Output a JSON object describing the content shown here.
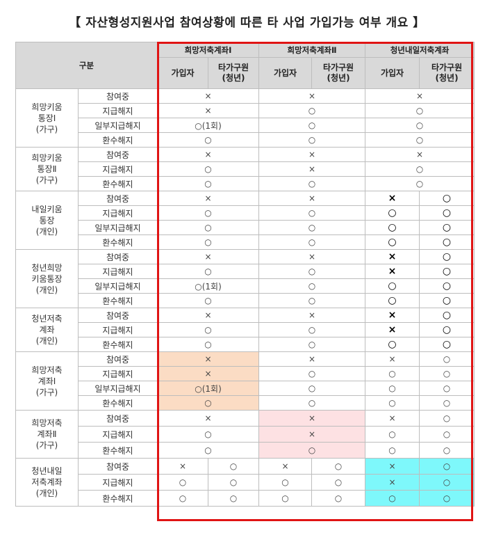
{
  "title": "【 자산형성지원사업 참여상황에 따른 타 사업 가입가능 여부 개요 】",
  "header": {
    "gubun": "구분",
    "columns": [
      {
        "label": "희망저축계좌Ⅰ",
        "sub": [
          "가입자",
          "타가구원\n(청년)"
        ]
      },
      {
        "label": "희망저축계좌Ⅱ",
        "sub": [
          "가입자",
          "타가구원\n(청년)"
        ]
      },
      {
        "label": "청년내일저축계좌",
        "sub": [
          "가입자",
          "타가구원\n(청년)"
        ]
      }
    ]
  },
  "groups": [
    {
      "name": "희망키움\n통장Ⅰ\n(가구)",
      "rows": [
        {
          "label": "참여중",
          "cells": [
            {
              "v": "×",
              "span": 2
            },
            {
              "v": "×",
              "span": 2
            },
            {
              "v": "×",
              "span": 2
            }
          ]
        },
        {
          "label": "지급해지",
          "cells": [
            {
              "v": "×",
              "span": 2
            },
            {
              "v": "○",
              "span": 2
            },
            {
              "v": "○",
              "span": 2
            }
          ]
        },
        {
          "label": "일부지급해지",
          "cells": [
            {
              "v": "○(1회)",
              "span": 2
            },
            {
              "v": "○",
              "span": 2
            },
            {
              "v": "○",
              "span": 2
            }
          ]
        },
        {
          "label": "환수해지",
          "cells": [
            {
              "v": "○",
              "span": 2
            },
            {
              "v": "○",
              "span": 2
            },
            {
              "v": "○",
              "span": 2
            }
          ]
        }
      ]
    },
    {
      "name": "희망키움\n통장Ⅱ\n(가구)",
      "rows": [
        {
          "label": "참여중",
          "cells": [
            {
              "v": "×",
              "span": 2
            },
            {
              "v": "×",
              "span": 2
            },
            {
              "v": "×",
              "span": 2
            }
          ]
        },
        {
          "label": "지급해지",
          "cells": [
            {
              "v": "○",
              "span": 2
            },
            {
              "v": "×",
              "span": 2
            },
            {
              "v": "○",
              "span": 2
            }
          ]
        },
        {
          "label": "환수해지",
          "cells": [
            {
              "v": "○",
              "span": 2
            },
            {
              "v": "○",
              "span": 2
            },
            {
              "v": "○",
              "span": 2
            }
          ]
        }
      ]
    },
    {
      "name": "내일키움\n통장\n(개인)",
      "rows": [
        {
          "label": "참여중",
          "cells": [
            {
              "v": "×",
              "span": 2
            },
            {
              "v": "×",
              "span": 2
            },
            {
              "v": "×",
              "bold": true
            },
            {
              "v": "○",
              "bold": true
            }
          ]
        },
        {
          "label": "지급해지",
          "cells": [
            {
              "v": "○",
              "span": 2
            },
            {
              "v": "○",
              "span": 2
            },
            {
              "v": "○",
              "bold": true
            },
            {
              "v": "○",
              "bold": true
            }
          ]
        },
        {
          "label": "일부지급해지",
          "cells": [
            {
              "v": "○",
              "span": 2
            },
            {
              "v": "○",
              "span": 2
            },
            {
              "v": "○",
              "bold": true
            },
            {
              "v": "○",
              "bold": true
            }
          ]
        },
        {
          "label": "환수해지",
          "cells": [
            {
              "v": "○",
              "span": 2
            },
            {
              "v": "○",
              "span": 2
            },
            {
              "v": "○",
              "bold": true
            },
            {
              "v": "○",
              "bold": true
            }
          ]
        }
      ]
    },
    {
      "name": "청년희망\n키움통장\n(개인)",
      "rows": [
        {
          "label": "참여중",
          "cells": [
            {
              "v": "×",
              "span": 2
            },
            {
              "v": "×",
              "span": 2
            },
            {
              "v": "×",
              "bold": true
            },
            {
              "v": "○",
              "bold": true
            }
          ]
        },
        {
          "label": "지급해지",
          "cells": [
            {
              "v": "○",
              "span": 2
            },
            {
              "v": "○",
              "span": 2
            },
            {
              "v": "×",
              "bold": true
            },
            {
              "v": "○",
              "bold": true
            }
          ]
        },
        {
          "label": "일부지급해지",
          "cells": [
            {
              "v": "○(1회)",
              "span": 2
            },
            {
              "v": "○",
              "span": 2
            },
            {
              "v": "○",
              "bold": true
            },
            {
              "v": "○",
              "bold": true
            }
          ]
        },
        {
          "label": "환수해지",
          "cells": [
            {
              "v": "○",
              "span": 2
            },
            {
              "v": "○",
              "span": 2
            },
            {
              "v": "○",
              "bold": true
            },
            {
              "v": "○",
              "bold": true
            }
          ]
        }
      ]
    },
    {
      "name": "청년저축\n계좌\n(개인)",
      "rows": [
        {
          "label": "참여중",
          "cells": [
            {
              "v": "×",
              "span": 2
            },
            {
              "v": "×",
              "span": 2
            },
            {
              "v": "×",
              "bold": true
            },
            {
              "v": "○",
              "bold": true
            }
          ]
        },
        {
          "label": "지급해지",
          "cells": [
            {
              "v": "○",
              "span": 2
            },
            {
              "v": "○",
              "span": 2
            },
            {
              "v": "×",
              "bold": true
            },
            {
              "v": "○",
              "bold": true
            }
          ]
        },
        {
          "label": "환수해지",
          "cells": [
            {
              "v": "○",
              "span": 2
            },
            {
              "v": "○",
              "span": 2
            },
            {
              "v": "○",
              "bold": true
            },
            {
              "v": "○",
              "bold": true
            }
          ]
        }
      ]
    },
    {
      "name": "희망저축\n계좌Ⅰ\n(가구)",
      "rows": [
        {
          "label": "참여중",
          "cells": [
            {
              "v": "×",
              "span": 2,
              "hl": "peach"
            },
            {
              "v": "×",
              "span": 2
            },
            {
              "v": "×"
            },
            {
              "v": "○"
            }
          ]
        },
        {
          "label": "지급해지",
          "cells": [
            {
              "v": "×",
              "span": 2,
              "hl": "peach"
            },
            {
              "v": "○",
              "span": 2
            },
            {
              "v": "○"
            },
            {
              "v": "○"
            }
          ]
        },
        {
          "label": "일부지급해지",
          "cells": [
            {
              "v": "○(1회)",
              "span": 2,
              "hl": "peach"
            },
            {
              "v": "○",
              "span": 2
            },
            {
              "v": "○"
            },
            {
              "v": "○"
            }
          ]
        },
        {
          "label": "환수해지",
          "cells": [
            {
              "v": "○",
              "span": 2,
              "hl": "peach"
            },
            {
              "v": "○",
              "span": 2
            },
            {
              "v": "○"
            },
            {
              "v": "○"
            }
          ]
        }
      ]
    },
    {
      "name": "희망저축\n계좌Ⅱ\n(가구)",
      "rows": [
        {
          "label": "참여중",
          "cells": [
            {
              "v": "×",
              "span": 2
            },
            {
              "v": "×",
              "span": 2,
              "hl": "pink"
            },
            {
              "v": "×"
            },
            {
              "v": "○"
            }
          ]
        },
        {
          "label": "지급해지",
          "cells": [
            {
              "v": "○",
              "span": 2
            },
            {
              "v": "×",
              "span": 2,
              "hl": "pink"
            },
            {
              "v": "○"
            },
            {
              "v": "○"
            }
          ]
        },
        {
          "label": "환수해지",
          "cells": [
            {
              "v": "○",
              "span": 2
            },
            {
              "v": "○",
              "span": 2,
              "hl": "pink"
            },
            {
              "v": "○"
            },
            {
              "v": "○"
            }
          ]
        }
      ]
    },
    {
      "name": "청년내일\n저축계좌\n(개인)",
      "rows": [
        {
          "label": "참여중",
          "cells": [
            {
              "v": "×"
            },
            {
              "v": "○"
            },
            {
              "v": "×"
            },
            {
              "v": "○"
            },
            {
              "v": "×",
              "hl": "cyan"
            },
            {
              "v": "○",
              "hl": "cyan"
            }
          ]
        },
        {
          "label": "지급해지",
          "cells": [
            {
              "v": "○"
            },
            {
              "v": "○"
            },
            {
              "v": "○"
            },
            {
              "v": "○"
            },
            {
              "v": "×",
              "hl": "cyan"
            },
            {
              "v": "○",
              "hl": "cyan"
            }
          ]
        },
        {
          "label": "환수해지",
          "cells": [
            {
              "v": "○"
            },
            {
              "v": "○"
            },
            {
              "v": "○"
            },
            {
              "v": "○"
            },
            {
              "v": "○",
              "hl": "cyan"
            },
            {
              "v": "○",
              "hl": "cyan"
            }
          ]
        }
      ]
    }
  ],
  "colors": {
    "highlight_box": "#e01414",
    "peach": "#fbdcc4",
    "pink": "#fde1e3",
    "cyan": "#7ef8fb",
    "header_bg": "#d9d9d9"
  }
}
